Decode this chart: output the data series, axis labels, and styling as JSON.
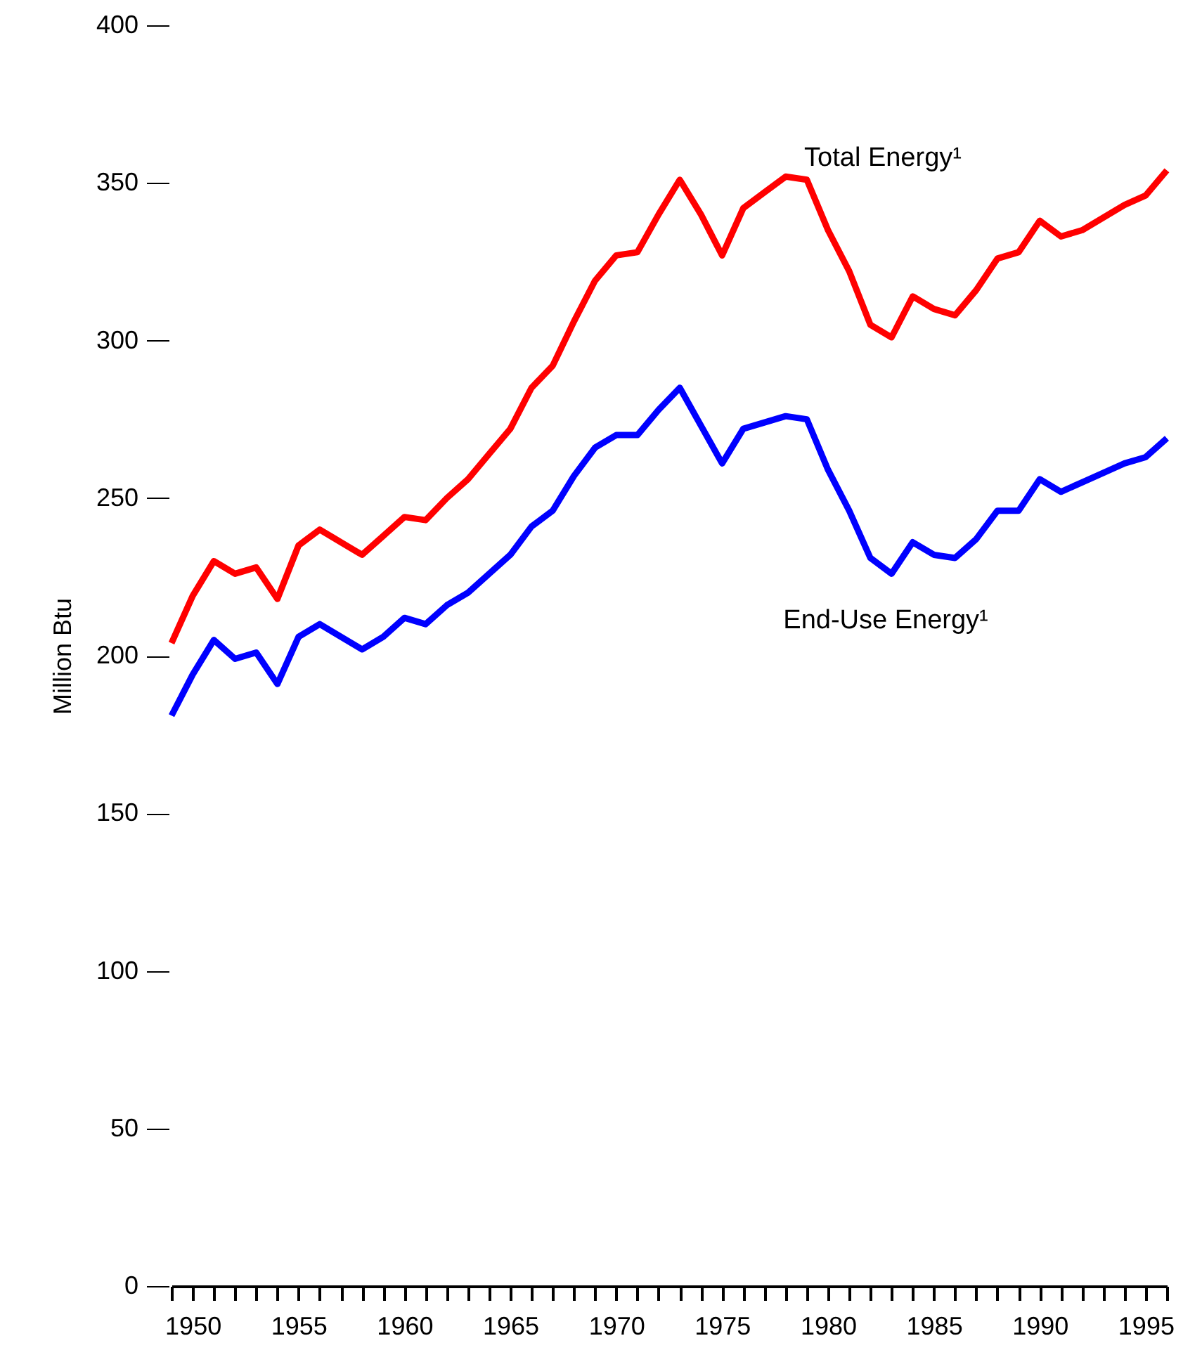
{
  "chart_data": {
    "type": "line",
    "ylabel": "Million Btu",
    "x": [
      1949,
      1950,
      1951,
      1952,
      1953,
      1954,
      1955,
      1956,
      1957,
      1958,
      1959,
      1960,
      1961,
      1962,
      1963,
      1964,
      1965,
      1966,
      1967,
      1968,
      1969,
      1970,
      1971,
      1972,
      1973,
      1974,
      1975,
      1976,
      1977,
      1978,
      1979,
      1980,
      1981,
      1982,
      1983,
      1984,
      1985,
      1986,
      1987,
      1988,
      1989,
      1990,
      1991,
      1992,
      1993,
      1994,
      1995,
      1996
    ],
    "series": [
      {
        "name": "Total Energy¹",
        "color": "#ff0000",
        "values": [
          204,
          219,
          230,
          226,
          228,
          218,
          235,
          240,
          236,
          232,
          238,
          244,
          243,
          250,
          256,
          264,
          272,
          285,
          292,
          306,
          319,
          327,
          328,
          340,
          351,
          340,
          327,
          342,
          347,
          352,
          351,
          335,
          322,
          305,
          301,
          314,
          310,
          308,
          316,
          326,
          328,
          338,
          333,
          335,
          339,
          343,
          346,
          354
        ]
      },
      {
        "name": "End-Use Energy¹",
        "color": "#0000ff",
        "values": [
          181,
          194,
          205,
          199,
          201,
          191,
          206,
          210,
          206,
          202,
          206,
          212,
          210,
          216,
          220,
          226,
          232,
          241,
          246,
          257,
          266,
          270,
          270,
          278,
          285,
          273,
          261,
          272,
          274,
          276,
          275,
          259,
          246,
          231,
          226,
          236,
          232,
          231,
          237,
          246,
          246,
          256,
          252,
          255,
          258,
          261,
          263,
          269
        ]
      }
    ],
    "xlim": [
      1949,
      1996
    ],
    "xticks": [
      {
        "value": 1949,
        "label": null
      },
      1950,
      {
        "value": 1951,
        "label": null
      },
      {
        "value": 1952,
        "label": null
      },
      {
        "value": 1953,
        "label": null
      },
      {
        "value": 1954,
        "label": null
      },
      1955,
      {
        "value": 1956,
        "label": null
      },
      {
        "value": 1957,
        "label": null
      },
      {
        "value": 1958,
        "label": null
      },
      {
        "value": 1959,
        "label": null
      },
      1960,
      {
        "value": 1961,
        "label": null
      },
      {
        "value": 1962,
        "label": null
      },
      {
        "value": 1963,
        "label": null
      },
      {
        "value": 1964,
        "label": null
      },
      1965,
      {
        "value": 1966,
        "label": null
      },
      {
        "value": 1967,
        "label": null
      },
      {
        "value": 1968,
        "label": null
      },
      {
        "value": 1969,
        "label": null
      },
      1970,
      {
        "value": 1971,
        "label": null
      },
      {
        "value": 1972,
        "label": null
      },
      {
        "value": 1973,
        "label": null
      },
      {
        "value": 1974,
        "label": null
      },
      1975,
      {
        "value": 1976,
        "label": null
      },
      {
        "value": 1977,
        "label": null
      },
      {
        "value": 1978,
        "label": null
      },
      {
        "value": 1979,
        "label": null
      },
      1980,
      {
        "value": 1981,
        "label": null
      },
      {
        "value": 1982,
        "label": null
      },
      {
        "value": 1983,
        "label": null
      },
      {
        "value": 1984,
        "label": null
      },
      1985,
      {
        "value": 1986,
        "label": null
      },
      {
        "value": 1987,
        "label": null
      },
      {
        "value": 1988,
        "label": null
      },
      {
        "value": 1989,
        "label": null
      },
      1990,
      {
        "value": 1991,
        "label": null
      },
      {
        "value": 1992,
        "label": null
      },
      {
        "value": 1993,
        "label": null
      },
      {
        "value": 1994,
        "label": null
      },
      1995,
      {
        "value": 1996,
        "label": null
      }
    ],
    "ylim": [
      0,
      400
    ],
    "yticks": [
      0,
      50,
      100,
      150,
      200,
      250,
      300,
      350,
      400
    ],
    "grid": false,
    "marker": "none",
    "line_style": "solid"
  }
}
